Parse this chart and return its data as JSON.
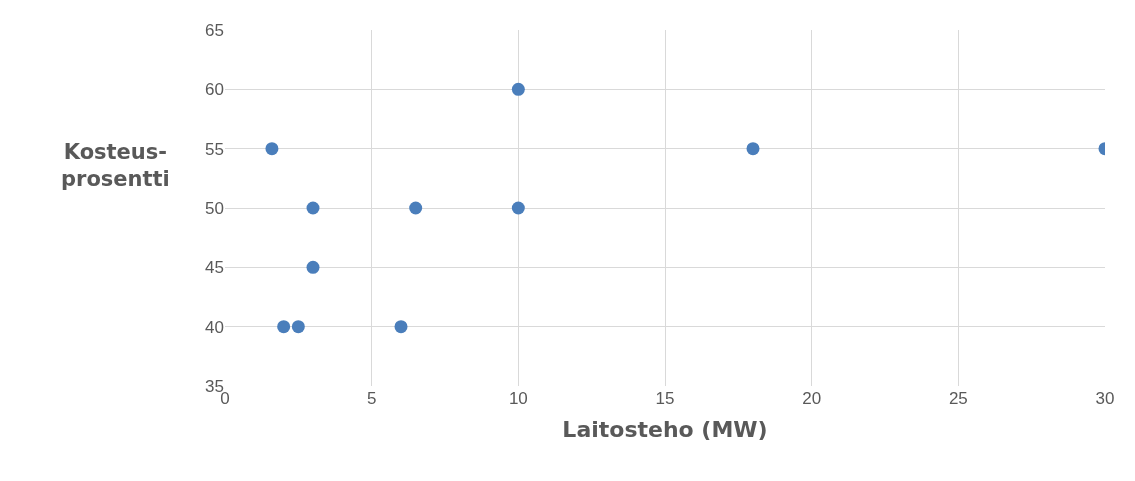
{
  "chart_data": {
    "type": "scatter",
    "xlabel": "Laitosteho (MW)",
    "ylabel": "Kosteus-\nprosentti",
    "x": [
      1.6,
      10,
      18,
      30,
      3,
      6.5,
      10,
      3,
      2,
      2.5,
      6
    ],
    "series": [
      {
        "color": "#4a7ebb",
        "values": [
          55,
          60,
          55,
          55,
          50,
          50,
          50,
          45,
          40,
          40,
          40
        ]
      }
    ],
    "xlim": [
      0,
      30
    ],
    "xticks": [
      0,
      5,
      10,
      15,
      20,
      25,
      30
    ],
    "ylim": [
      35,
      65
    ],
    "yticks": [
      35,
      40,
      45,
      50,
      55,
      60,
      65
    ],
    "grid": true,
    "marker": "circle"
  }
}
